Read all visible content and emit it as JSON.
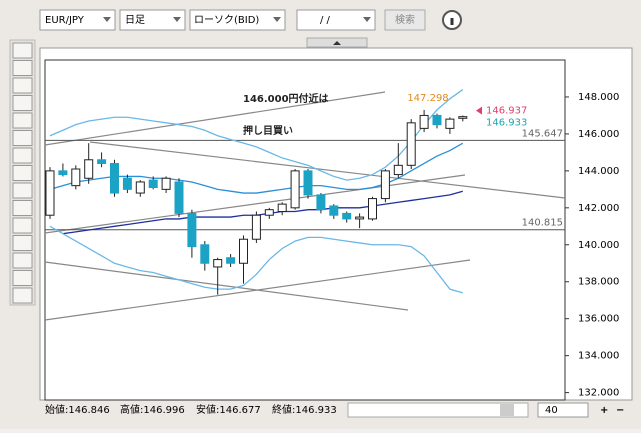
{
  "toolbar": {
    "symbol": "EUR/JPY",
    "timeframe": "日足",
    "chart_style": "ローソク(BID)",
    "date": "/   /",
    "search": "検索"
  },
  "status": {
    "open": "始値:146.846",
    "high": "高値:146.996",
    "low": "安値:146.677",
    "close": "終値:146.933",
    "count": "40"
  },
  "chart_data": {
    "type": "candlestick",
    "ylim": [
      131.6,
      150
    ],
    "yticks": [
      {
        "value": 132,
        "label": "132.000"
      },
      {
        "value": 134,
        "label": "134.000"
      },
      {
        "value": 136,
        "label": "136.000"
      },
      {
        "value": 138,
        "label": "138.000"
      },
      {
        "value": 140,
        "label": "140.000"
      },
      {
        "value": 142,
        "label": "142.000"
      },
      {
        "value": 144,
        "label": "144.000"
      },
      {
        "value": 146,
        "label": "146.000"
      },
      {
        "value": 148,
        "label": "148.000"
      }
    ],
    "up_color": "#ffffff",
    "down_color": "#1ba3c6",
    "open": [
      141.6,
      144.0,
      143.2,
      143.6,
      144.6,
      144.4,
      143.6,
      142.8,
      143.5,
      143.0,
      143.4,
      141.7,
      140.0,
      138.8,
      139.3,
      139.0,
      140.3,
      141.6,
      141.8,
      142.0,
      144.0,
      142.7,
      142.1,
      141.7,
      141.4,
      141.4,
      142.5,
      143.8,
      144.3,
      146.3,
      147.0,
      146.3,
      146.846
    ],
    "high": [
      144.2,
      144.4,
      144.3,
      145.5,
      145.0,
      144.6,
      143.8,
      143.5,
      143.7,
      143.7,
      143.6,
      141.9,
      140.2,
      139.3,
      139.5,
      140.5,
      141.8,
      142.0,
      142.3,
      144.1,
      144.1,
      142.8,
      142.2,
      141.8,
      141.7,
      142.6,
      144.1,
      145.5,
      146.8,
      147.298,
      147.1,
      146.9,
      146.996
    ],
    "low": [
      141.4,
      143.7,
      143.0,
      143.3,
      144.2,
      142.6,
      142.8,
      142.6,
      143.0,
      142.8,
      141.5,
      139.3,
      138.6,
      137.3,
      138.8,
      137.9,
      140.1,
      141.4,
      141.6,
      141.9,
      142.5,
      141.7,
      141.4,
      141.2,
      140.9,
      141.3,
      142.3,
      143.6,
      144.1,
      146.1,
      146.3,
      146.0,
      146.677
    ],
    "close": [
      144.0,
      143.8,
      144.1,
      144.6,
      144.4,
      142.8,
      143.0,
      143.4,
      143.1,
      143.6,
      141.7,
      139.9,
      139.0,
      139.2,
      139.0,
      140.3,
      141.6,
      141.9,
      142.2,
      144.0,
      142.7,
      141.9,
      141.6,
      141.4,
      141.5,
      142.5,
      144.0,
      144.3,
      146.6,
      147.0,
      146.5,
      146.8,
      146.933
    ],
    "lines": [
      {
        "color": "#6ab8e8",
        "values": [
          145.9,
          146.2,
          146.5,
          146.7,
          146.8,
          146.9,
          146.9,
          146.8,
          146.7,
          146.6,
          146.5,
          146.4,
          146.2,
          145.9,
          145.7,
          145.5,
          145.3,
          145.0,
          144.7,
          144.5,
          144.3,
          144.0,
          143.7,
          143.5,
          143.6,
          143.8,
          144.2,
          144.8,
          145.6,
          146.5,
          147.3,
          147.9,
          148.4
        ]
      },
      {
        "color": "#2a8fd8",
        "values": [
          143.0,
          143.2,
          143.4,
          143.5,
          143.6,
          143.7,
          143.7,
          143.7,
          143.6,
          143.6,
          143.5,
          143.4,
          143.2,
          143.0,
          142.9,
          142.8,
          142.8,
          142.9,
          143.0,
          143.1,
          143.2,
          143.2,
          143.1,
          143.0,
          143.0,
          143.1,
          143.3,
          143.6,
          144.0,
          144.4,
          144.8,
          145.1,
          145.5
        ]
      },
      {
        "color": "#1f2f9e",
        "values": [
          null,
          140.6,
          140.7,
          140.8,
          140.9,
          141.0,
          141.1,
          141.2,
          141.3,
          141.4,
          141.4,
          141.5,
          141.5,
          141.5,
          141.5,
          141.6,
          141.6,
          141.7,
          141.8,
          141.8,
          141.9,
          141.9,
          142.0,
          142.0,
          142.0,
          142.1,
          142.2,
          142.3,
          142.4,
          142.5,
          142.6,
          142.7,
          142.9
        ]
      },
      {
        "color": "#6ab8e8",
        "values": [
          141.0,
          140.6,
          140.2,
          139.8,
          139.4,
          139.0,
          138.8,
          138.6,
          138.5,
          138.3,
          138.1,
          137.9,
          137.7,
          137.6,
          137.6,
          137.8,
          138.4,
          139.2,
          139.8,
          140.2,
          140.4,
          140.4,
          140.3,
          140.2,
          140.1,
          140.0,
          140.0,
          140.0,
          139.9,
          139.4,
          138.5,
          137.6,
          137.4
        ]
      }
    ],
    "hlines": [
      {
        "value": 145.647,
        "label": "145.647"
      },
      {
        "value": 140.815,
        "label": "140.815"
      }
    ],
    "annotations": [
      "146.000円付近は",
      "押し目買い"
    ],
    "high_label": {
      "value": 147.298,
      "label": "147.298",
      "color": "#e08a1e"
    },
    "price_labels": [
      {
        "value": 146.937,
        "label": "146.937",
        "color": "#e0406e"
      },
      {
        "value": 146.933,
        "label": "146.933",
        "color": "#1aa7b8"
      }
    ]
  }
}
